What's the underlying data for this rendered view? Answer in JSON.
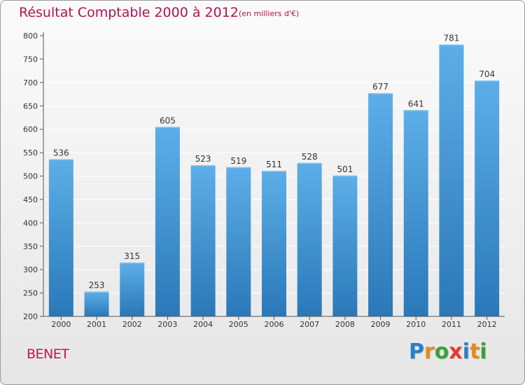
{
  "chart_data": {
    "type": "bar",
    "title": "Résultat Comptable 2000 à 2012",
    "subtitle": "(en milliers d'€)",
    "xlabel": "",
    "ylabel": "",
    "categories": [
      "2000",
      "2001",
      "2002",
      "2003",
      "2004",
      "2005",
      "2006",
      "2007",
      "2008",
      "2009",
      "2010",
      "2011",
      "2012"
    ],
    "values": [
      536,
      253,
      315,
      605,
      523,
      519,
      511,
      528,
      501,
      677,
      641,
      781,
      704
    ],
    "ylim": [
      200,
      800
    ],
    "yticks": [
      200,
      250,
      300,
      350,
      400,
      450,
      500,
      550,
      600,
      650,
      700,
      750,
      800
    ],
    "grid": true,
    "legend": "none"
  },
  "footer": {
    "commune": "BENET",
    "logo_letters": [
      {
        "ch": "P",
        "color": "#2a7fc8"
      },
      {
        "ch": "r",
        "color": "#e58a1f"
      },
      {
        "ch": "o",
        "color": "#3aa13a"
      },
      {
        "ch": "x",
        "color": "#e23b2b"
      },
      {
        "ch": "i",
        "color": "#2a7fc8"
      },
      {
        "ch": "t",
        "color": "#e58a1f"
      },
      {
        "ch": "i",
        "color": "#3aa13a"
      }
    ]
  },
  "colors": {
    "title": "#b0134f",
    "bar_top": "#5daee8",
    "bar_bottom": "#2a78b8",
    "grid": "#ffffff",
    "axis": "#555555",
    "text": "#333333"
  }
}
